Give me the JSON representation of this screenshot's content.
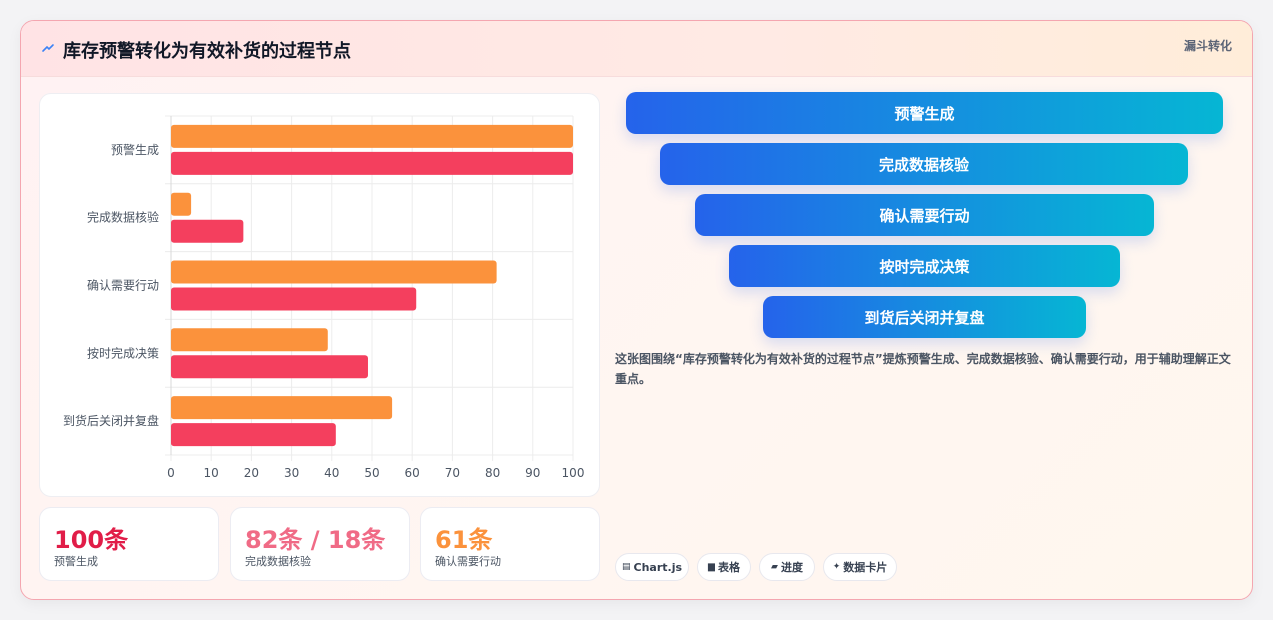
{
  "header": {
    "title": "库存预警转化为有效补货的过程节点",
    "tag": "漏斗转化"
  },
  "chart_data": {
    "type": "bar",
    "orientation": "horizontal",
    "categories": [
      "预警生成",
      "完成数据核验",
      "确认需要行动",
      "按时完成决策",
      "到货后关闭并复盘"
    ],
    "series": [
      {
        "values": [
          100,
          5,
          81,
          39,
          55
        ],
        "color": "#fb923c"
      },
      {
        "values": [
          100,
          18,
          61,
          49,
          41
        ],
        "color": "#f43f5e"
      }
    ],
    "xlim": [
      0,
      100
    ],
    "xticks": [
      "0",
      "10",
      "20",
      "30",
      "40",
      "50",
      "60",
      "70",
      "80",
      "90",
      "100"
    ],
    "grid": true,
    "legend": "none"
  },
  "stats": [
    {
      "value": "100条",
      "label": "预警生成",
      "color": "#e11d48"
    },
    {
      "value": "82条 / 18条",
      "label": "完成数据核验",
      "color": "#f06b86"
    },
    {
      "value": "61条",
      "label": "确认需要行动",
      "color": "#fb923c"
    }
  ],
  "funnel": {
    "steps": [
      "预警生成",
      "完成数据核验",
      "确认需要行动",
      "按时完成决策",
      "到货后关闭并复盘"
    ]
  },
  "description": "这张图围绕“库存预警转化为有效补货的过程节点”提炼预警生成、完成数据核验、确认需要行动，用于辅助理解正文重点。",
  "chips": [
    {
      "icon": "▤",
      "label": "Chart.js"
    },
    {
      "icon": "▆",
      "label": "表格"
    },
    {
      "icon": "▰",
      "label": "进度"
    },
    {
      "icon": "✦",
      "label": "数据卡片"
    }
  ]
}
